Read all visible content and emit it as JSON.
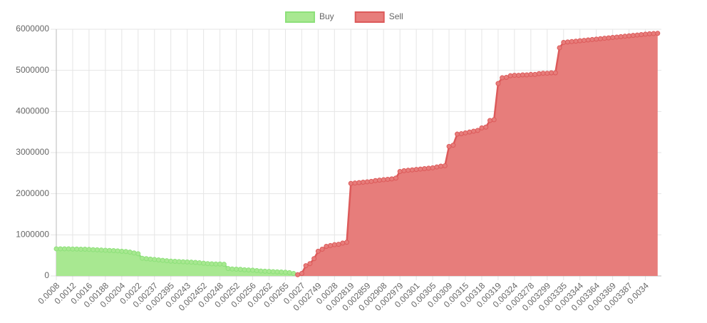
{
  "chart_data": {
    "type": "line",
    "fill": true,
    "categories": [
      "0.0008",
      null,
      null,
      null,
      "0.0012",
      null,
      null,
      null,
      "0.0016",
      null,
      null,
      null,
      "0.00188",
      null,
      null,
      null,
      "0.00204",
      null,
      null,
      null,
      "0.0022",
      null,
      null,
      null,
      "0.00237",
      null,
      null,
      null,
      "0.002395",
      null,
      null,
      null,
      "0.00243",
      null,
      null,
      null,
      "0.002452",
      null,
      null,
      null,
      "0.00248",
      null,
      null,
      null,
      "0.00252",
      null,
      null,
      null,
      "0.00256",
      null,
      null,
      null,
      "0.00262",
      null,
      null,
      null,
      "0.00265",
      null,
      null,
      null,
      "0.0027",
      null,
      null,
      null,
      "0.002749",
      null,
      null,
      null,
      "0.0028",
      null,
      null,
      null,
      "0.002819",
      null,
      null,
      null,
      "0.002859",
      null,
      null,
      null,
      "0.002908",
      null,
      null,
      null,
      "0.002979",
      null,
      null,
      null,
      "0.00301",
      null,
      null,
      null,
      "0.00305",
      null,
      null,
      null,
      "0.00309",
      null,
      null,
      null,
      "0.00315",
      null,
      null,
      null,
      "0.00318",
      null,
      null,
      null,
      "0.00319",
      null,
      null,
      null,
      "0.00324",
      null,
      null,
      null,
      "0.003278",
      null,
      null,
      null,
      "0.003299",
      null,
      null,
      null,
      "0.003335",
      null,
      null,
      null,
      "0.003344",
      null,
      null,
      null,
      "0.003364",
      null,
      null,
      null,
      "0.003369",
      null,
      null,
      null,
      "0.003387",
      null,
      null,
      null,
      "0.0034",
      null,
      null,
      null
    ],
    "series": [
      {
        "name": "Buy",
        "color": "#8de07a",
        "fill_color": "#a8e891",
        "values": [
          660000,
          660000,
          660000,
          660000,
          655000,
          655000,
          650000,
          650000,
          645000,
          640000,
          635000,
          630000,
          625000,
          620000,
          615000,
          610000,
          600000,
          595000,
          580000,
          560000,
          540000,
          430000,
          420000,
          410000,
          400000,
          390000,
          380000,
          370000,
          360000,
          355000,
          350000,
          345000,
          340000,
          335000,
          330000,
          320000,
          310000,
          300000,
          295000,
          290000,
          290000,
          285000,
          180000,
          170000,
          165000,
          160000,
          150000,
          145000,
          140000,
          130000,
          120000,
          115000,
          110000,
          105000,
          100000,
          95000,
          90000,
          80000,
          60000,
          null,
          null,
          null,
          null,
          null,
          null,
          null,
          null,
          null,
          null,
          null,
          null,
          null,
          null,
          null,
          null,
          null,
          null,
          null,
          null,
          null,
          null,
          null,
          null,
          null,
          null,
          null,
          null,
          null,
          null,
          null,
          null,
          null,
          null,
          null,
          null,
          null,
          null,
          null,
          null,
          null,
          null,
          null,
          null,
          null,
          null,
          null,
          null,
          null,
          null,
          null,
          null,
          null,
          null,
          null,
          null,
          null,
          null,
          null,
          null,
          null,
          null,
          null,
          null,
          null,
          null,
          null,
          null,
          null,
          null,
          null,
          null,
          null,
          null,
          null,
          null,
          null,
          null,
          null,
          null,
          null,
          null,
          null,
          null,
          null,
          null,
          null,
          null,
          null
        ]
      },
      {
        "name": "Sell",
        "color": "#dc5a5a",
        "fill_color": "#e77d7b",
        "values": [
          null,
          null,
          null,
          null,
          null,
          null,
          null,
          null,
          null,
          null,
          null,
          null,
          null,
          null,
          null,
          null,
          null,
          null,
          null,
          null,
          null,
          null,
          null,
          null,
          null,
          null,
          null,
          null,
          null,
          null,
          null,
          null,
          null,
          null,
          null,
          null,
          null,
          null,
          null,
          null,
          null,
          null,
          null,
          null,
          null,
          null,
          null,
          null,
          null,
          null,
          null,
          null,
          null,
          null,
          null,
          null,
          null,
          null,
          null,
          30000,
          60000,
          250000,
          300000,
          420000,
          600000,
          650000,
          720000,
          740000,
          760000,
          770000,
          800000,
          820000,
          2250000,
          2260000,
          2270000,
          2280000,
          2290000,
          2300000,
          2320000,
          2330000,
          2340000,
          2350000,
          2360000,
          2380000,
          2540000,
          2560000,
          2570000,
          2580000,
          2590000,
          2600000,
          2610000,
          2620000,
          2630000,
          2650000,
          2670000,
          2680000,
          3150000,
          3180000,
          3450000,
          3460000,
          3480000,
          3500000,
          3520000,
          3540000,
          3600000,
          3620000,
          3780000,
          3800000,
          4680000,
          4820000,
          4830000,
          4870000,
          4880000,
          4880000,
          4890000,
          4890000,
          4900000,
          4900000,
          4920000,
          4930000,
          4930000,
          4940000,
          4940000,
          5550000,
          5680000,
          5690000,
          5700000,
          5710000,
          5720000,
          5730000,
          5740000,
          5750000,
          5760000,
          5770000,
          5780000,
          5790000,
          5800000,
          5810000,
          5820000,
          5830000,
          5840000,
          5850000,
          5860000,
          5870000,
          5880000,
          5890000,
          5895000,
          5900000
        ]
      }
    ],
    "ylim": [
      0,
      6000000
    ],
    "yticks": [
      0,
      1000000,
      2000000,
      3000000,
      4000000,
      5000000,
      6000000
    ],
    "grid": true,
    "legend": "top"
  }
}
